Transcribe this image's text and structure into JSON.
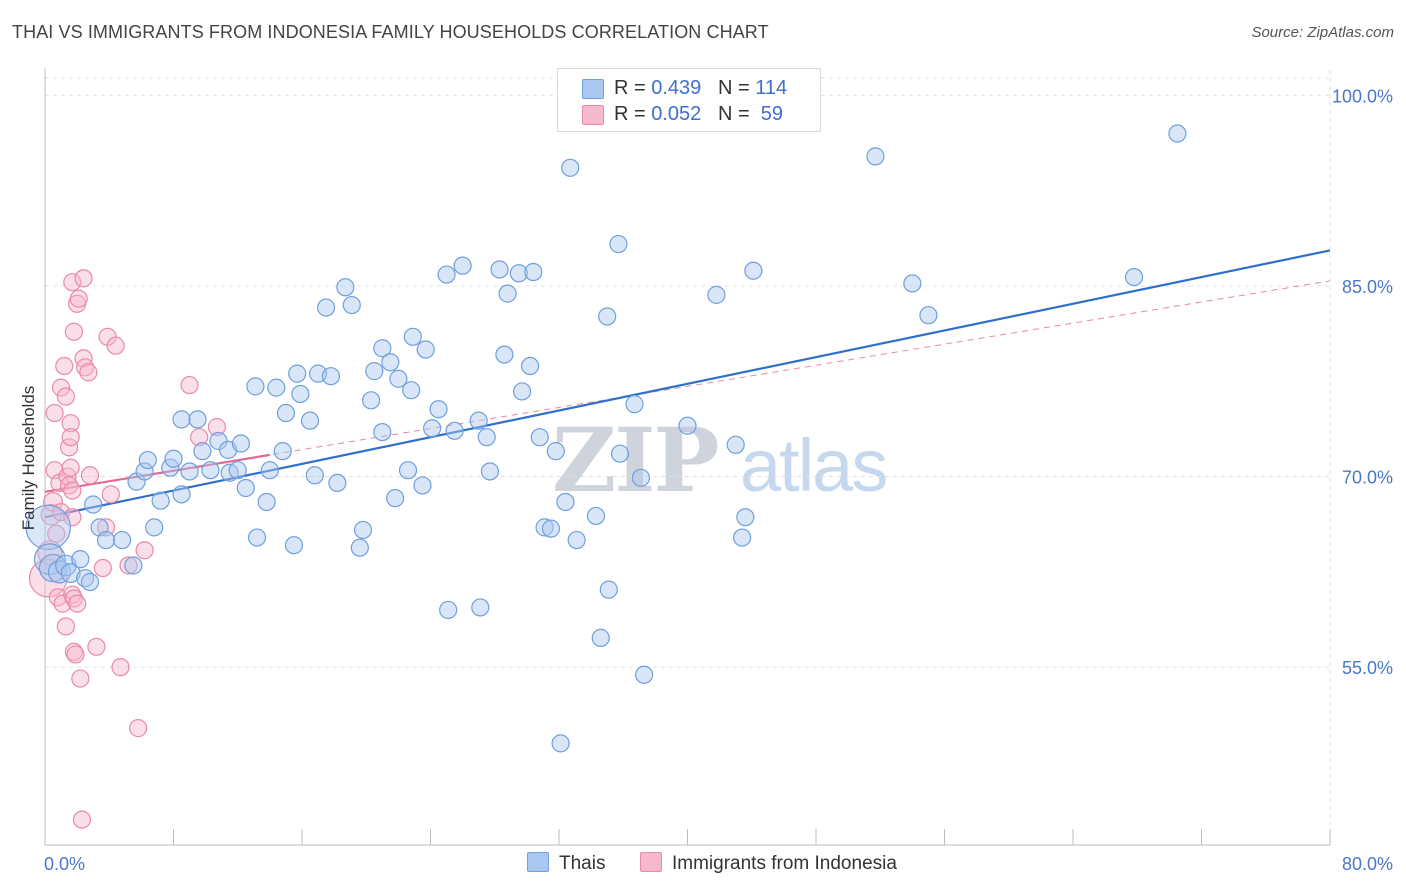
{
  "title": "THAI VS IMMIGRANTS FROM INDONESIA FAMILY HOUSEHOLDS CORRELATION CHART",
  "source": "Source: ZipAtlas.com",
  "watermark": {
    "zip": "ZIP",
    "atlas": "atlas"
  },
  "colors": {
    "blue_fill": "#aac7ef",
    "blue_stroke": "#6f9fdc",
    "blue_line": "#2f6fcc",
    "pink_fill": "#f6b8cc",
    "pink_stroke": "#ea89a8",
    "pink_line": "#e06a90",
    "tick_text": "#4a78c8",
    "grid": "#e0e0e0"
  },
  "legend": {
    "rows": [
      {
        "r_label": "R = ",
        "r_value": "0.439",
        "n_label": "N = ",
        "n_value": "114"
      },
      {
        "r_label": "R = ",
        "r_value": "0.052",
        "n_label": "N = ",
        "n_value": " 59"
      }
    ]
  },
  "bottom_legend": {
    "series1": "Thais",
    "series2": "Immigrants from Indonesia"
  },
  "chart_data": {
    "type": "scatter",
    "title": "THAI VS IMMIGRANTS FROM INDONESIA FAMILY HOUSEHOLDS CORRELATION CHART",
    "xlabel": "",
    "ylabel": "Family Households",
    "xlim": [
      0,
      80
    ],
    "ylim": [
      41,
      102
    ],
    "x_tick_labels": [
      "0.0%",
      "80.0%"
    ],
    "y_ticks": [
      100,
      85,
      70,
      55
    ],
    "y_tick_labels": [
      "100.0%",
      "85.0%",
      "70.0%",
      "55.0%"
    ],
    "grid": true,
    "series": [
      {
        "name": "Thais",
        "R": 0.439,
        "N": 114,
        "trend": {
          "x": [
            0,
            80
          ],
          "y": [
            66.8,
            87.8
          ]
        },
        "points": [
          [
            0.2,
            66.0,
            2.6
          ],
          [
            0.3,
            63.5,
            1.8
          ],
          [
            0.5,
            62.8,
            1.6
          ],
          [
            0.9,
            62.5,
            1.3
          ],
          [
            1.3,
            63.0,
            1.2
          ],
          [
            1.6,
            62.4,
            1.1
          ],
          [
            2.2,
            63.5,
            1.0
          ],
          [
            2.5,
            62.0,
            1.0
          ],
          [
            2.8,
            61.7,
            1.0
          ],
          [
            3.0,
            67.8,
            1.0
          ],
          [
            3.4,
            66.0,
            1.0
          ],
          [
            3.8,
            65.0,
            1.0
          ],
          [
            4.8,
            65.0,
            1.0
          ],
          [
            5.5,
            63.0,
            1.0
          ],
          [
            5.7,
            69.6,
            1.0
          ],
          [
            6.2,
            70.4,
            1.0
          ],
          [
            6.4,
            71.3,
            1.0
          ],
          [
            6.8,
            66.0,
            1.0
          ],
          [
            7.2,
            68.1,
            1.0
          ],
          [
            7.8,
            70.7,
            1.0
          ],
          [
            8.0,
            71.4,
            1.0
          ],
          [
            8.5,
            68.6,
            1.0
          ],
          [
            8.5,
            74.5,
            1.0
          ],
          [
            9.0,
            70.4,
            1.0
          ],
          [
            9.5,
            74.5,
            1.0
          ],
          [
            9.8,
            72.0,
            1.0
          ],
          [
            10.3,
            70.5,
            1.0
          ],
          [
            10.8,
            72.8,
            1.0
          ],
          [
            11.4,
            72.1,
            1.0
          ],
          [
            11.5,
            70.3,
            1.0
          ],
          [
            12.0,
            70.5,
            1.0
          ],
          [
            12.2,
            72.6,
            1.0
          ],
          [
            12.5,
            69.1,
            1.0
          ],
          [
            13.2,
            65.2,
            1.0
          ],
          [
            13.1,
            77.1,
            1.0
          ],
          [
            13.8,
            68.0,
            1.0
          ],
          [
            14.0,
            70.5,
            1.0
          ],
          [
            14.4,
            77.0,
            1.0
          ],
          [
            14.8,
            72.0,
            1.0
          ],
          [
            15.0,
            75.0,
            1.0
          ],
          [
            15.5,
            64.6,
            1.0
          ],
          [
            15.7,
            78.1,
            1.0
          ],
          [
            15.9,
            76.5,
            1.0
          ],
          [
            16.5,
            74.4,
            1.0
          ],
          [
            16.8,
            70.1,
            1.0
          ],
          [
            17.0,
            78.1,
            1.0
          ],
          [
            17.5,
            83.3,
            1.0
          ],
          [
            17.8,
            77.9,
            1.0
          ],
          [
            18.2,
            69.5,
            1.0
          ],
          [
            18.7,
            84.9,
            1.0
          ],
          [
            19.1,
            83.5,
            1.0
          ],
          [
            19.6,
            64.4,
            1.0
          ],
          [
            19.8,
            65.8,
            1.0
          ],
          [
            20.3,
            76.0,
            1.0
          ],
          [
            20.5,
            78.3,
            1.0
          ],
          [
            21.0,
            73.5,
            1.0
          ],
          [
            21.0,
            80.1,
            1.0
          ],
          [
            21.5,
            79.0,
            1.0
          ],
          [
            21.8,
            68.3,
            1.0
          ],
          [
            22.0,
            77.7,
            1.0
          ],
          [
            22.6,
            70.5,
            1.0
          ],
          [
            22.8,
            76.8,
            1.0
          ],
          [
            22.9,
            81.0,
            1.0
          ],
          [
            23.5,
            69.3,
            1.0
          ],
          [
            23.7,
            80.0,
            1.0
          ],
          [
            24.1,
            73.8,
            1.0
          ],
          [
            24.5,
            75.3,
            1.0
          ],
          [
            25.0,
            85.9,
            1.0
          ],
          [
            25.1,
            59.5,
            1.0
          ],
          [
            25.5,
            73.6,
            1.0
          ],
          [
            26.0,
            86.6,
            1.0
          ],
          [
            27.0,
            74.4,
            1.0
          ],
          [
            27.1,
            59.7,
            1.0
          ],
          [
            27.5,
            73.1,
            1.0
          ],
          [
            27.7,
            70.4,
            1.0
          ],
          [
            28.3,
            86.3,
            1.0
          ],
          [
            28.6,
            79.6,
            1.0
          ],
          [
            28.8,
            84.4,
            1.0
          ],
          [
            29.5,
            86.0,
            1.0
          ],
          [
            29.7,
            76.7,
            1.0
          ],
          [
            30.2,
            78.7,
            1.0
          ],
          [
            30.4,
            86.1,
            1.0
          ],
          [
            30.8,
            73.1,
            1.0
          ],
          [
            31.1,
            66.0,
            1.0
          ],
          [
            31.5,
            65.9,
            1.0
          ],
          [
            31.8,
            72.0,
            1.0
          ],
          [
            32.1,
            49.0,
            1.0
          ],
          [
            32.4,
            68.0,
            1.0
          ],
          [
            32.7,
            94.3,
            1.0
          ],
          [
            33.1,
            65.0,
            1.0
          ],
          [
            34.3,
            66.9,
            1.0
          ],
          [
            34.6,
            57.3,
            1.0
          ],
          [
            35.0,
            82.6,
            1.0
          ],
          [
            35.1,
            61.1,
            1.0
          ],
          [
            35.7,
            88.3,
            1.0
          ],
          [
            35.8,
            71.8,
            1.0
          ],
          [
            36.7,
            75.7,
            1.0
          ],
          [
            37.1,
            69.9,
            1.0
          ],
          [
            37.3,
            54.4,
            1.0
          ],
          [
            40.0,
            74.0,
            1.0
          ],
          [
            41.8,
            84.3,
            1.0
          ],
          [
            43.0,
            72.5,
            1.0
          ],
          [
            43.4,
            65.2,
            1.0
          ],
          [
            43.6,
            66.8,
            1.0
          ],
          [
            44.1,
            86.2,
            1.0
          ],
          [
            51.7,
            95.2,
            1.0
          ],
          [
            54.0,
            85.2,
            1.0
          ],
          [
            55.0,
            82.7,
            1.0
          ],
          [
            67.8,
            85.7,
            1.0
          ],
          [
            70.5,
            97.0,
            1.0
          ]
        ]
      },
      {
        "name": "Immigrants from Indonesia",
        "R": 0.052,
        "N": 59,
        "trend": {
          "x": [
            0,
            80
          ],
          "y": [
            68.8,
            85.4
          ]
        },
        "points": [
          [
            0.2,
            62.0,
            2.2
          ],
          [
            0.3,
            64.0,
            1.4
          ],
          [
            0.4,
            67.0,
            1.2
          ],
          [
            0.5,
            68.0,
            1.1
          ],
          [
            0.6,
            70.5,
            1.0
          ],
          [
            0.6,
            75.0,
            1.0
          ],
          [
            0.7,
            65.5,
            1.0
          ],
          [
            0.8,
            60.5,
            1.0
          ],
          [
            0.9,
            69.5,
            1.0
          ],
          [
            1.0,
            77.0,
            1.0
          ],
          [
            1.0,
            67.2,
            1.0
          ],
          [
            1.1,
            60.0,
            1.0
          ],
          [
            1.2,
            78.7,
            1.0
          ],
          [
            1.3,
            58.2,
            1.0
          ],
          [
            1.3,
            76.3,
            1.0
          ],
          [
            1.4,
            70.0,
            1.0
          ],
          [
            1.5,
            72.3,
            1.0
          ],
          [
            1.5,
            69.3,
            1.0
          ],
          [
            1.6,
            74.2,
            1.0
          ],
          [
            1.6,
            73.1,
            1.0
          ],
          [
            1.6,
            70.7,
            1.0
          ],
          [
            1.7,
            68.9,
            1.0
          ],
          [
            1.7,
            66.8,
            1.0
          ],
          [
            1.7,
            60.7,
            1.0
          ],
          [
            1.7,
            85.3,
            1.0
          ],
          [
            1.8,
            56.2,
            1.0
          ],
          [
            1.8,
            60.4,
            1.0
          ],
          [
            1.8,
            81.4,
            1.0
          ],
          [
            1.9,
            56.0,
            1.0
          ],
          [
            2.0,
            83.6,
            1.0
          ],
          [
            2.0,
            60.0,
            1.0
          ],
          [
            2.1,
            84.0,
            1.0
          ],
          [
            2.2,
            54.1,
            1.0
          ],
          [
            2.3,
            43.0,
            1.0
          ],
          [
            2.4,
            85.6,
            1.0
          ],
          [
            2.4,
            79.3,
            1.0
          ],
          [
            2.5,
            78.6,
            1.0
          ],
          [
            2.7,
            78.2,
            1.0
          ],
          [
            2.8,
            70.1,
            1.0
          ],
          [
            3.2,
            56.6,
            1.0
          ],
          [
            3.6,
            62.8,
            1.0
          ],
          [
            3.8,
            66.0,
            1.0
          ],
          [
            3.9,
            81.0,
            1.0
          ],
          [
            4.1,
            68.6,
            1.0
          ],
          [
            4.4,
            80.3,
            1.0
          ],
          [
            4.7,
            55.0,
            1.0
          ],
          [
            5.2,
            63.0,
            1.0
          ],
          [
            5.8,
            50.2,
            1.0
          ],
          [
            6.2,
            64.2,
            1.0
          ],
          [
            9.0,
            77.2,
            1.0
          ],
          [
            9.6,
            73.1,
            1.0
          ],
          [
            10.7,
            73.9,
            1.0
          ]
        ]
      }
    ]
  }
}
